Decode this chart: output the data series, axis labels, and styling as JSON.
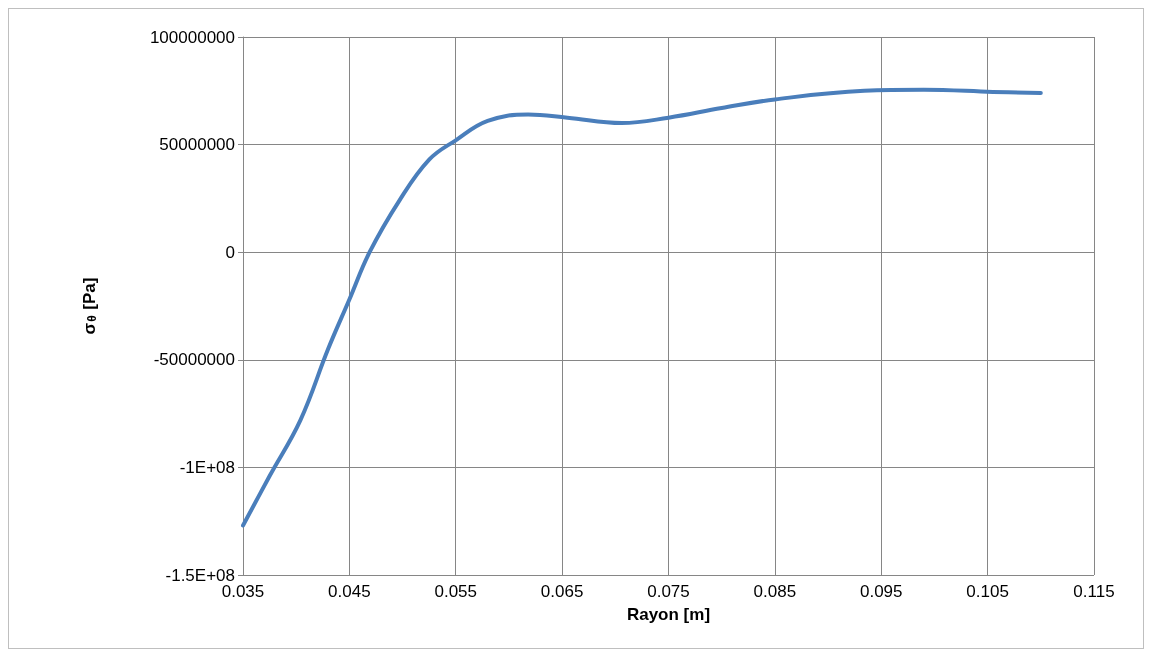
{
  "chart_data": {
    "type": "line",
    "xlabel": "Rayon [m]",
    "ylabel": "σ$_{θ}$ [Pa]",
    "series": [
      {
        "color": "#4a7ebb",
        "x": [
          0.035,
          0.0375,
          0.0404,
          0.043,
          0.045,
          0.0469,
          0.0497,
          0.0525,
          0.055,
          0.058,
          0.0618,
          0.0655,
          0.0706,
          0.075,
          0.08,
          0.085,
          0.0934,
          0.099,
          0.1055,
          0.11
        ],
        "values": [
          -127000000,
          -104000000,
          -78000000,
          -45000000,
          -22000000,
          0,
          24000000,
          43000000,
          52000000,
          61000000,
          64000000,
          62500000,
          60000000,
          62500000,
          67000000,
          71000000,
          75000000,
          75500000,
          74500000,
          74000000
        ]
      }
    ],
    "xlim": [
      0.035,
      0.115
    ],
    "xticks": [
      0.035,
      0.045,
      0.055,
      0.065,
      0.075,
      0.085,
      0.095,
      0.105,
      0.115
    ],
    "ylim": [
      -150000000,
      100000000
    ],
    "yticks": [
      {
        "value": -150000000,
        "label": "-1.5E+08"
      },
      {
        "value": -100000000,
        "label": "-1E+08"
      },
      {
        "value": -50000000,
        "label": "-50000000"
      },
      {
        "value": 0,
        "label": "0"
      },
      {
        "value": 50000000,
        "label": "50000000"
      },
      {
        "value": 100000000,
        "label": "100000000"
      }
    ],
    "grid": true,
    "marker": "none",
    "line_style": "solid"
  }
}
